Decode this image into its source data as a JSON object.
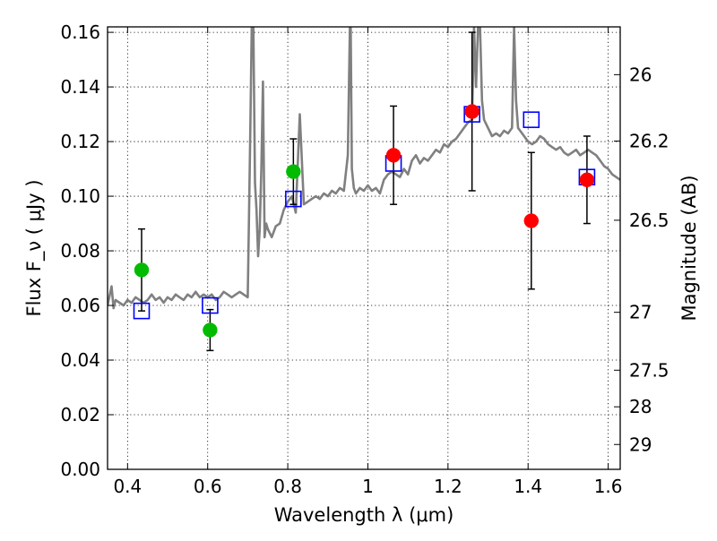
{
  "chart_data": {
    "type": "scatter",
    "xlabel": "Wavelength λ (μm)",
    "ylabel": "Flux F_ν ( μJy )",
    "ylabel_right": "Magnitude (AB)",
    "xlim": [
      0.35,
      1.63
    ],
    "ylim": [
      0.0,
      0.162
    ],
    "grid": true,
    "x_ticks": [
      0.4,
      0.6,
      0.8,
      1.0,
      1.2,
      1.4,
      1.6
    ],
    "x_tick_labels": [
      "0.4",
      "0.6",
      "0.8",
      "1",
      "1.2",
      "1.4",
      "1.6"
    ],
    "y_ticks": [
      0.0,
      0.02,
      0.04,
      0.06,
      0.08,
      0.1,
      0.12,
      0.14,
      0.16
    ],
    "y_tick_labels": [
      "0.00",
      "0.02",
      "0.04",
      "0.06",
      "0.08",
      "0.10",
      "0.12",
      "0.14",
      "0.16"
    ],
    "mag_ticks": [
      {
        "label": "26",
        "flux": 0.1445
      },
      {
        "label": "26.2",
        "flux": 0.1202
      },
      {
        "label": "26.5",
        "flux": 0.0912
      },
      {
        "label": "27",
        "flux": 0.0575
      },
      {
        "label": "27.5",
        "flux": 0.0363
      },
      {
        "label": "28",
        "flux": 0.0229
      },
      {
        "label": "29",
        "flux": 0.0091
      }
    ],
    "series": [
      {
        "marker": "circle",
        "color": "#00bb00",
        "points": [
          {
            "x": 0.435,
            "y": 0.073,
            "err": [
              0.015,
              0.015
            ]
          },
          {
            "x": 0.606,
            "y": 0.051,
            "err": [
              0.0075,
              0.0075
            ]
          },
          {
            "x": 0.814,
            "y": 0.109,
            "err": [
              0.012,
              0.012
            ]
          }
        ]
      },
      {
        "marker": "circle",
        "color": "#ff0000",
        "points": [
          {
            "x": 1.064,
            "y": 0.115,
            "err": [
              0.018,
              0.018
            ]
          },
          {
            "x": 1.26,
            "y": 0.131,
            "err": [
              0.029,
              0.029
            ]
          },
          {
            "x": 1.408,
            "y": 0.091,
            "err": [
              0.025,
              0.025
            ]
          },
          {
            "x": 1.547,
            "y": 0.106,
            "err": [
              0.016,
              0.016
            ]
          }
        ]
      },
      {
        "marker": "open-square",
        "color": "#0000ff",
        "points": [
          {
            "x": 0.435,
            "y": 0.058
          },
          {
            "x": 0.606,
            "y": 0.06
          },
          {
            "x": 0.814,
            "y": 0.099
          },
          {
            "x": 1.064,
            "y": 0.112
          },
          {
            "x": 1.26,
            "y": 0.13
          },
          {
            "x": 1.408,
            "y": 0.128
          },
          {
            "x": 1.547,
            "y": 0.107
          }
        ]
      },
      {
        "marker": "line",
        "color": "#808080",
        "x": [
          0.35,
          0.36,
          0.365,
          0.37,
          0.38,
          0.39,
          0.4,
          0.41,
          0.42,
          0.43,
          0.44,
          0.45,
          0.46,
          0.47,
          0.48,
          0.49,
          0.5,
          0.51,
          0.52,
          0.53,
          0.54,
          0.55,
          0.56,
          0.57,
          0.58,
          0.59,
          0.6,
          0.61,
          0.62,
          0.63,
          0.64,
          0.65,
          0.66,
          0.67,
          0.68,
          0.69,
          0.7,
          0.703,
          0.706,
          0.71,
          0.714,
          0.718,
          0.722,
          0.726,
          0.73,
          0.734,
          0.738,
          0.742,
          0.746,
          0.75,
          0.76,
          0.77,
          0.78,
          0.79,
          0.8,
          0.81,
          0.82,
          0.83,
          0.84,
          0.85,
          0.86,
          0.87,
          0.88,
          0.89,
          0.9,
          0.91,
          0.92,
          0.93,
          0.94,
          0.95,
          0.955,
          0.957,
          0.96,
          0.965,
          0.97,
          0.98,
          0.99,
          1.0,
          1.01,
          1.02,
          1.03,
          1.04,
          1.05,
          1.06,
          1.07,
          1.08,
          1.09,
          1.1,
          1.11,
          1.12,
          1.13,
          1.14,
          1.15,
          1.16,
          1.17,
          1.18,
          1.19,
          1.2,
          1.21,
          1.22,
          1.23,
          1.24,
          1.25,
          1.26,
          1.265,
          1.27,
          1.275,
          1.28,
          1.285,
          1.29,
          1.3,
          1.31,
          1.32,
          1.33,
          1.34,
          1.35,
          1.36,
          1.365,
          1.37,
          1.375,
          1.38,
          1.39,
          1.4,
          1.41,
          1.42,
          1.43,
          1.44,
          1.45,
          1.46,
          1.47,
          1.48,
          1.49,
          1.5,
          1.51,
          1.52,
          1.53,
          1.54,
          1.55,
          1.56,
          1.57,
          1.58,
          1.59,
          1.6,
          1.61,
          1.62,
          1.63
        ],
        "y": [
          0.06,
          0.067,
          0.059,
          0.062,
          0.061,
          0.06,
          0.062,
          0.061,
          0.063,
          0.062,
          0.061,
          0.062,
          0.064,
          0.062,
          0.063,
          0.061,
          0.063,
          0.062,
          0.064,
          0.063,
          0.062,
          0.064,
          0.063,
          0.065,
          0.063,
          0.064,
          0.063,
          0.064,
          0.062,
          0.063,
          0.065,
          0.064,
          0.063,
          0.064,
          0.065,
          0.064,
          0.063,
          0.09,
          0.12,
          0.162,
          0.162,
          0.105,
          0.095,
          0.078,
          0.088,
          0.11,
          0.142,
          0.085,
          0.09,
          0.088,
          0.085,
          0.089,
          0.09,
          0.095,
          0.098,
          0.1,
          0.094,
          0.13,
          0.097,
          0.098,
          0.099,
          0.1,
          0.099,
          0.101,
          0.1,
          0.102,
          0.101,
          0.103,
          0.102,
          0.115,
          0.162,
          0.162,
          0.11,
          0.103,
          0.101,
          0.103,
          0.102,
          0.104,
          0.102,
          0.103,
          0.101,
          0.106,
          0.108,
          0.109,
          0.108,
          0.107,
          0.11,
          0.108,
          0.113,
          0.115,
          0.112,
          0.114,
          0.113,
          0.115,
          0.117,
          0.116,
          0.119,
          0.118,
          0.12,
          0.121,
          0.123,
          0.125,
          0.127,
          0.128,
          0.162,
          0.14,
          0.162,
          0.162,
          0.135,
          0.128,
          0.125,
          0.122,
          0.123,
          0.122,
          0.124,
          0.123,
          0.125,
          0.162,
          0.135,
          0.125,
          0.124,
          0.122,
          0.12,
          0.119,
          0.12,
          0.122,
          0.121,
          0.119,
          0.118,
          0.117,
          0.118,
          0.116,
          0.115,
          0.116,
          0.117,
          0.115,
          0.116,
          0.117,
          0.116,
          0.115,
          0.113,
          0.111,
          0.11,
          0.108,
          0.107,
          0.106
        ]
      }
    ]
  }
}
